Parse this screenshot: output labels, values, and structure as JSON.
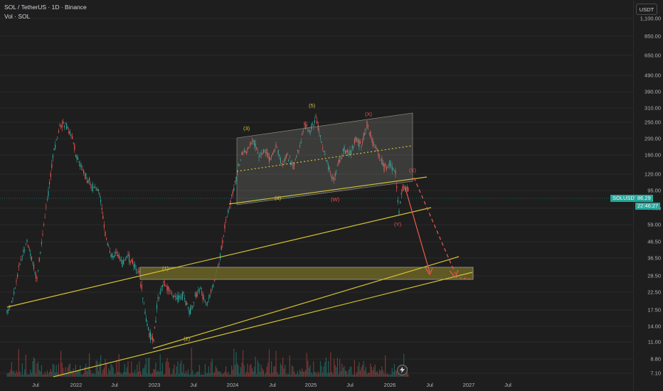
{
  "header": {
    "symbol_line": "SOL / TetherUS · 1D · Binance",
    "volume_line": "Vol · SOL"
  },
  "currency_button": "USDT",
  "price_axis": [
    "1,100.00",
    "850.00",
    "650.00",
    "490.00",
    "390.00",
    "310.00",
    "250.00",
    "200.00",
    "160.00",
    "120.00",
    "95.00",
    "74.00",
    "59.00",
    "46.50",
    "36.50",
    "28.50",
    "22.50",
    "17.50",
    "14.00",
    "11.00",
    "8.80",
    "7.10"
  ],
  "current_price": {
    "symbol": "SOLUSDT",
    "price": "86.29",
    "countdown": "22:46:27"
  },
  "time_axis": [
    "Jul",
    "2022",
    "Jul",
    "2023",
    "Jul",
    "2024",
    "Jul",
    "2025",
    "Jul",
    "2026",
    "Jul",
    "2027",
    "Jul"
  ],
  "wave_labels": {
    "w1": "(1)",
    "w2": "(2)",
    "w3": "(3)",
    "w4": "(4)",
    "w5": "(5)",
    "x_top": "(X)",
    "w_mid": "(W)",
    "y_low": "(Y)",
    "x_right": "(X)"
  },
  "colors": {
    "background": "#1e1e1e",
    "up": "#26a69a",
    "down": "#ef5350",
    "trendline": "#d4c234",
    "zone": "#6b6426",
    "arrow": "#f2594b"
  },
  "icons": {
    "lightning": "lightning-icon"
  }
}
